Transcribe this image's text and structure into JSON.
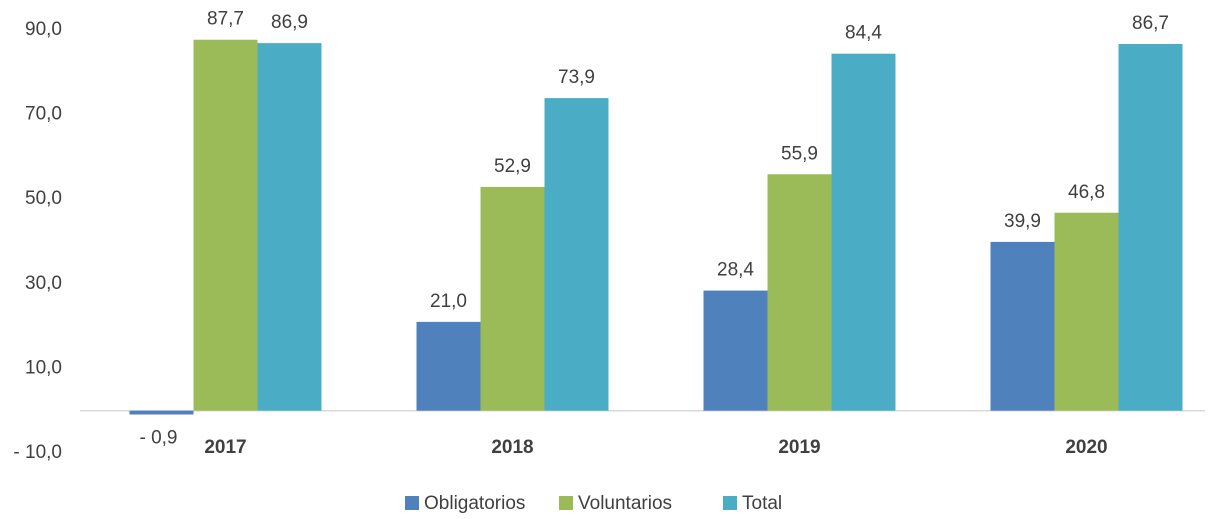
{
  "chart_data": {
    "type": "bar",
    "categories": [
      "2017",
      "2018",
      "2019",
      "2020"
    ],
    "series": [
      {
        "name": "Obligatorios",
        "color": "#4f81bd",
        "values": [
          -0.9,
          21.0,
          28.4,
          39.9
        ],
        "value_labels": [
          "- 0,9",
          "21,0",
          "28,4",
          "39,9"
        ]
      },
      {
        "name": "Voluntarios",
        "color": "#9bbb59",
        "values": [
          87.7,
          52.9,
          55.9,
          46.8
        ],
        "value_labels": [
          "87,7",
          "52,9",
          "55,9",
          "46,8"
        ]
      },
      {
        "name": "Total",
        "color": "#4bacc6",
        "values": [
          86.9,
          73.9,
          84.4,
          86.7
        ],
        "value_labels": [
          "86,9",
          "73,9",
          "84,4",
          "86,7"
        ]
      }
    ],
    "ylim": [
      -10,
      90
    ],
    "yticks": [
      {
        "value": -10,
        "label": "- 10,0"
      },
      {
        "value": 10,
        "label": "10,0"
      },
      {
        "value": 30,
        "label": "30,0"
      },
      {
        "value": 50,
        "label": "50,0"
      },
      {
        "value": 70,
        "label": "70,0"
      },
      {
        "value": 90,
        "label": "90,0"
      }
    ],
    "grid": false,
    "legend": "bottom"
  }
}
